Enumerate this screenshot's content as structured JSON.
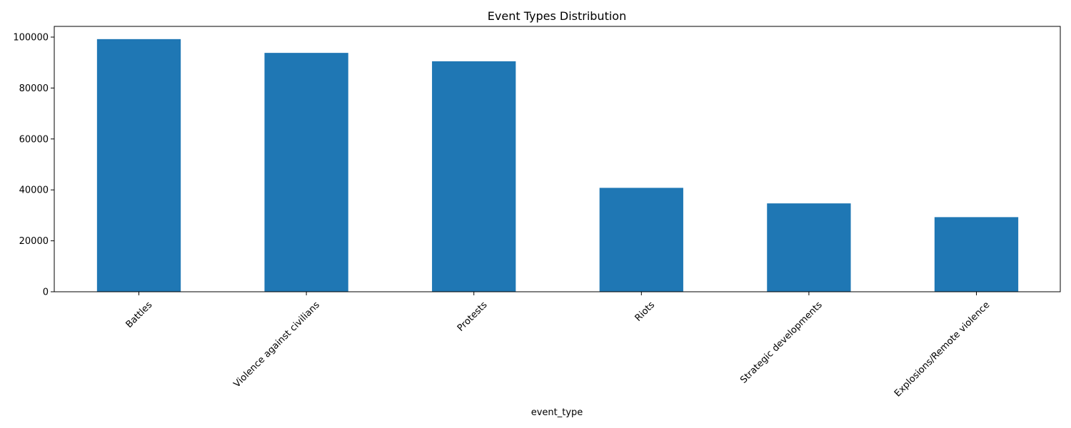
{
  "chart_data": {
    "type": "bar",
    "title": "Event Types Distribution",
    "xlabel": "event_type",
    "ylabel": "",
    "categories": [
      "Battles",
      "Violence against civilians",
      "Protests",
      "Riots",
      "Strategic developments",
      "Explosions/Remote violence"
    ],
    "values": [
      99200,
      93800,
      90500,
      40800,
      34700,
      29300
    ],
    "ylim": [
      0,
      104200
    ],
    "yticks": [
      0,
      20000,
      40000,
      60000,
      80000,
      100000
    ],
    "ytick_labels": [
      "0",
      "20000",
      "40000",
      "60000",
      "80000",
      "100000"
    ],
    "xtick_rotation_deg": 45,
    "grid": false,
    "legend": "none",
    "colors": {
      "bar": "#1f77b4",
      "axis": "#000000",
      "background": "#ffffff"
    }
  }
}
